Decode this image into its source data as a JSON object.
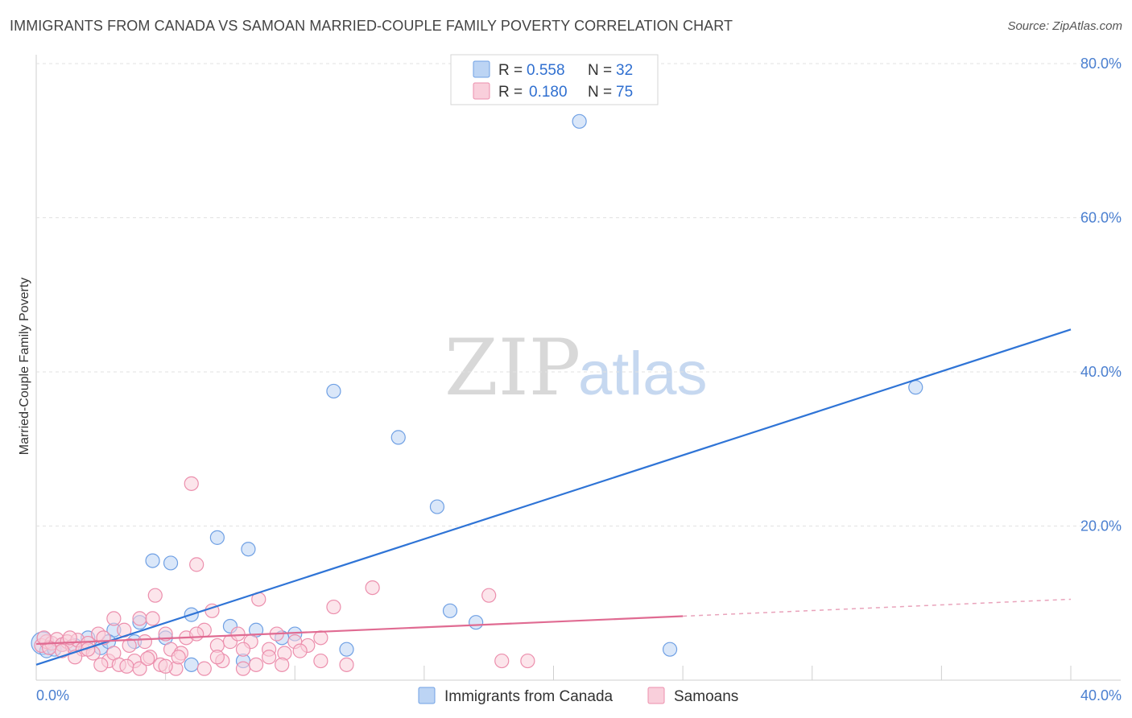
{
  "header": {
    "title": "IMMIGRANTS FROM CANADA VS SAMOAN MARRIED-COUPLE FAMILY POVERTY CORRELATION CHART",
    "source": "Source: ZipAtlas.com"
  },
  "watermark": {
    "zip": "ZIP",
    "atlas": "atlas"
  },
  "legend": {
    "rows": [
      {
        "r_label": "R =",
        "r_value": "0.558",
        "n_label": "N =",
        "n_value": "32",
        "color": "#a9c7f0"
      },
      {
        "r_label": "R =",
        "r_value": "0.180",
        "n_label": "N =",
        "n_value": "75",
        "color": "#f5b8ca"
      }
    ]
  },
  "bottom_legend": {
    "items": [
      {
        "label": "Immigrants from Canada",
        "color": "#a9c7f0"
      },
      {
        "label": "Samoans",
        "color": "#f5b8ca"
      }
    ]
  },
  "chart_data": {
    "type": "scatter",
    "title": "IMMIGRANTS FROM CANADA VS SAMOAN MARRIED-COUPLE FAMILY POVERTY CORRELATION CHART",
    "xlabel": "",
    "ylabel": "Married-Couple Family Poverty",
    "xlim": [
      0,
      40
    ],
    "ylim": [
      0,
      80
    ],
    "x_tick_labels": [
      "0.0%",
      "40.0%"
    ],
    "y_ticks": [
      20,
      40,
      60,
      80
    ],
    "y_tick_labels": [
      "20.0%",
      "40.0%",
      "60.0%",
      "80.0%"
    ],
    "grid": true,
    "legend_position": "top-center",
    "series": [
      {
        "name": "Immigrants from Canada",
        "color": "#6fa0e4",
        "fill": "#bcd4f4",
        "points": [
          [
            0.25,
            4.8
          ],
          [
            0.4,
            3.8
          ],
          [
            0.7,
            4.0
          ],
          [
            1.0,
            4.6
          ],
          [
            1.5,
            4.5
          ],
          [
            2.0,
            5.5
          ],
          [
            2.5,
            4.2
          ],
          [
            3.0,
            6.5
          ],
          [
            4.0,
            7.5
          ],
          [
            4.5,
            15.5
          ],
          [
            5.2,
            15.2
          ],
          [
            6.0,
            8.5
          ],
          [
            7.0,
            18.5
          ],
          [
            8.2,
            17.0
          ],
          [
            3.8,
            5.0
          ],
          [
            5.0,
            5.5
          ],
          [
            7.5,
            7.0
          ],
          [
            8.5,
            6.5
          ],
          [
            10.0,
            6.0
          ],
          [
            11.5,
            37.5
          ],
          [
            14.0,
            31.5
          ],
          [
            15.5,
            22.5
          ],
          [
            16.0,
            9.0
          ],
          [
            17.0,
            7.5
          ],
          [
            21.0,
            72.5
          ],
          [
            24.5,
            4.0
          ],
          [
            34.0,
            38.0
          ],
          [
            8.0,
            2.5
          ],
          [
            9.5,
            5.5
          ],
          [
            12.0,
            4.0
          ],
          [
            6.0,
            2.0
          ],
          [
            2.8,
            5.0
          ]
        ],
        "trend": {
          "from": [
            0,
            2.0
          ],
          "to": [
            40,
            45.5
          ]
        }
      },
      {
        "name": "Samoans",
        "color": "#ec8fad",
        "fill": "#f9cfdb",
        "points": [
          [
            0.2,
            4.5
          ],
          [
            0.4,
            5.0
          ],
          [
            0.6,
            4.8
          ],
          [
            0.8,
            5.3
          ],
          [
            1.0,
            4.6
          ],
          [
            1.2,
            5.0
          ],
          [
            1.4,
            4.4
          ],
          [
            1.6,
            5.2
          ],
          [
            1.8,
            4.0
          ],
          [
            2.0,
            4.8
          ],
          [
            2.2,
            3.5
          ],
          [
            2.4,
            6.0
          ],
          [
            2.6,
            5.5
          ],
          [
            2.8,
            2.5
          ],
          [
            3.0,
            3.5
          ],
          [
            3.2,
            2.0
          ],
          [
            3.4,
            6.5
          ],
          [
            3.6,
            4.5
          ],
          [
            3.8,
            2.5
          ],
          [
            4.0,
            8.0
          ],
          [
            4.2,
            5.0
          ],
          [
            4.4,
            3.0
          ],
          [
            4.6,
            11.0
          ],
          [
            4.8,
            2.0
          ],
          [
            5.0,
            6.0
          ],
          [
            5.2,
            4.0
          ],
          [
            5.4,
            1.5
          ],
          [
            5.6,
            3.5
          ],
          [
            5.8,
            5.5
          ],
          [
            6.0,
            25.5
          ],
          [
            6.2,
            15.0
          ],
          [
            6.5,
            6.5
          ],
          [
            6.8,
            9.0
          ],
          [
            7.0,
            4.5
          ],
          [
            7.2,
            2.5
          ],
          [
            7.5,
            5.0
          ],
          [
            7.8,
            6.0
          ],
          [
            8.0,
            1.5
          ],
          [
            8.3,
            5.0
          ],
          [
            8.6,
            10.5
          ],
          [
            9.0,
            4.0
          ],
          [
            9.3,
            6.0
          ],
          [
            9.6,
            3.5
          ],
          [
            10.0,
            5.0
          ],
          [
            10.5,
            4.5
          ],
          [
            11.0,
            2.5
          ],
          [
            11.5,
            9.5
          ],
          [
            13.0,
            12.0
          ],
          [
            17.5,
            11.0
          ],
          [
            18.0,
            2.5
          ],
          [
            19.0,
            2.5
          ],
          [
            3.0,
            8.0
          ],
          [
            1.5,
            3.0
          ],
          [
            2.5,
            2.0
          ],
          [
            4.5,
            8.0
          ],
          [
            5.5,
            3.0
          ],
          [
            6.5,
            1.5
          ],
          [
            8.5,
            2.0
          ],
          [
            9.0,
            3.0
          ],
          [
            0.5,
            4.2
          ],
          [
            1.0,
            3.8
          ],
          [
            1.3,
            5.5
          ],
          [
            2.0,
            4.0
          ],
          [
            3.5,
            1.8
          ],
          [
            4.0,
            1.5
          ],
          [
            4.3,
            2.8
          ],
          [
            5.0,
            1.8
          ],
          [
            6.2,
            6.0
          ],
          [
            7.0,
            3.0
          ],
          [
            8.0,
            4.0
          ],
          [
            9.5,
            2.0
          ],
          [
            10.2,
            3.8
          ],
          [
            11.0,
            5.5
          ],
          [
            12.0,
            2.0
          ],
          [
            0.3,
            5.5
          ]
        ],
        "trend": {
          "from": [
            0,
            4.7
          ],
          "to": [
            25,
            8.3
          ],
          "dashed_to": [
            40,
            10.5
          ]
        }
      }
    ]
  }
}
